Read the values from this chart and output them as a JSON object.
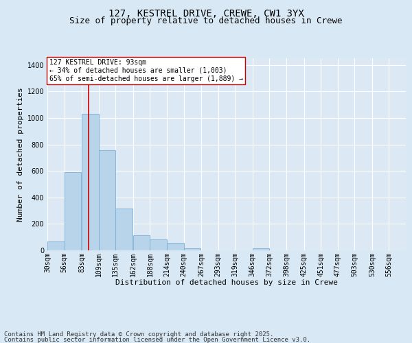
{
  "title_line1": "127, KESTREL DRIVE, CREWE, CW1 3YX",
  "title_line2": "Size of property relative to detached houses in Crewe",
  "xlabel": "Distribution of detached houses by size in Crewe",
  "ylabel": "Number of detached properties",
  "annotation_title": "127 KESTREL DRIVE: 93sqm",
  "annotation_line2": "← 34% of detached houses are smaller (1,003)",
  "annotation_line3": "65% of semi-detached houses are larger (1,889) →",
  "bar_color": "#b8d4ea",
  "bar_edge_color": "#7aafd4",
  "background_color": "#d8e8f4",
  "plot_bg_color": "#dce9f5",
  "grid_color": "#ffffff",
  "vline_color": "#cc0000",
  "vline_x": 93,
  "categories": [
    "30sqm",
    "56sqm",
    "83sqm",
    "109sqm",
    "135sqm",
    "162sqm",
    "188sqm",
    "214sqm",
    "240sqm",
    "267sqm",
    "293sqm",
    "319sqm",
    "346sqm",
    "372sqm",
    "398sqm",
    "425sqm",
    "451sqm",
    "477sqm",
    "503sqm",
    "530sqm",
    "556sqm"
  ],
  "bin_left": [
    30,
    56,
    83,
    109,
    135,
    162,
    188,
    214,
    240,
    267,
    293,
    319,
    346,
    372,
    398,
    425,
    451,
    477,
    503,
    530,
    556
  ],
  "bin_width": 26,
  "values": [
    65,
    590,
    1030,
    755,
    315,
    115,
    85,
    55,
    15,
    0,
    0,
    0,
    15,
    0,
    0,
    0,
    0,
    0,
    0,
    0,
    0
  ],
  "ylim": [
    0,
    1450
  ],
  "yticks": [
    0,
    200,
    400,
    600,
    800,
    1000,
    1200,
    1400
  ],
  "footnote_line1": "Contains HM Land Registry data © Crown copyright and database right 2025.",
  "footnote_line2": "Contains public sector information licensed under the Open Government Licence v3.0.",
  "title_fontsize": 10,
  "subtitle_fontsize": 9,
  "annotation_fontsize": 7,
  "axis_label_fontsize": 8,
  "tick_fontsize": 7,
  "footnote_fontsize": 6.5
}
